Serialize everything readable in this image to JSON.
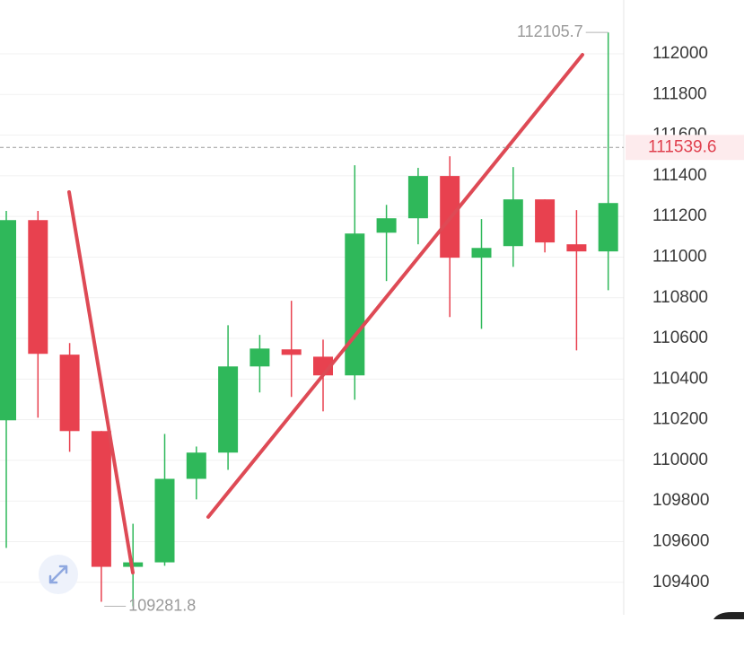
{
  "chart_data": {
    "type": "candlestick",
    "candles": [
      {
        "open": 110197,
        "high": 111227,
        "low": 109569,
        "close": 111182
      },
      {
        "open": 111182,
        "high": 111227,
        "low": 110210,
        "close": 110524
      },
      {
        "open": 110520,
        "high": 110577,
        "low": 110042,
        "close": 110144
      },
      {
        "open": 110144,
        "high": 110144,
        "low": 109304,
        "close": 109476
      },
      {
        "open": 109476,
        "high": 109688,
        "low": 109281.8,
        "close": 109498
      },
      {
        "open": 109498,
        "high": 110130,
        "low": 109481,
        "close": 109909
      },
      {
        "open": 109909,
        "high": 110068,
        "low": 109808,
        "close": 110038
      },
      {
        "open": 110038,
        "high": 110665,
        "low": 109953,
        "close": 110462
      },
      {
        "open": 110462,
        "high": 110617,
        "low": 110334,
        "close": 110550
      },
      {
        "open": 110546,
        "high": 110785,
        "low": 110312,
        "close": 110519
      },
      {
        "open": 110510,
        "high": 110594,
        "low": 110241,
        "close": 110418
      },
      {
        "open": 110418,
        "high": 111452,
        "low": 110298,
        "close": 111116
      },
      {
        "open": 111120,
        "high": 111257,
        "low": 110882,
        "close": 111191
      },
      {
        "open": 111191,
        "high": 111439,
        "low": 111063,
        "close": 111399
      },
      {
        "open": 111399,
        "high": 111496,
        "low": 110705,
        "close": 110997
      },
      {
        "open": 110997,
        "high": 111187,
        "low": 110647,
        "close": 111045
      },
      {
        "open": 111054,
        "high": 111443,
        "low": 110952,
        "close": 111284
      },
      {
        "open": 111284,
        "high": 111284,
        "low": 111023,
        "close": 111072
      },
      {
        "open": 111063,
        "high": 111231,
        "low": 110541,
        "close": 111028
      },
      {
        "open": 111028,
        "high": 112105.7,
        "low": 110837,
        "close": 111266
      }
    ],
    "up_color": "#2fb85a",
    "down_color": "#e8414f",
    "last_price": 111539.6,
    "ylim": [
      109240,
      112265
    ],
    "yticks": [
      109400,
      109600,
      109800,
      110000,
      110200,
      110400,
      110600,
      110800,
      111000,
      111200,
      111400,
      111600,
      111800,
      112000
    ],
    "grid": true
  }
}
